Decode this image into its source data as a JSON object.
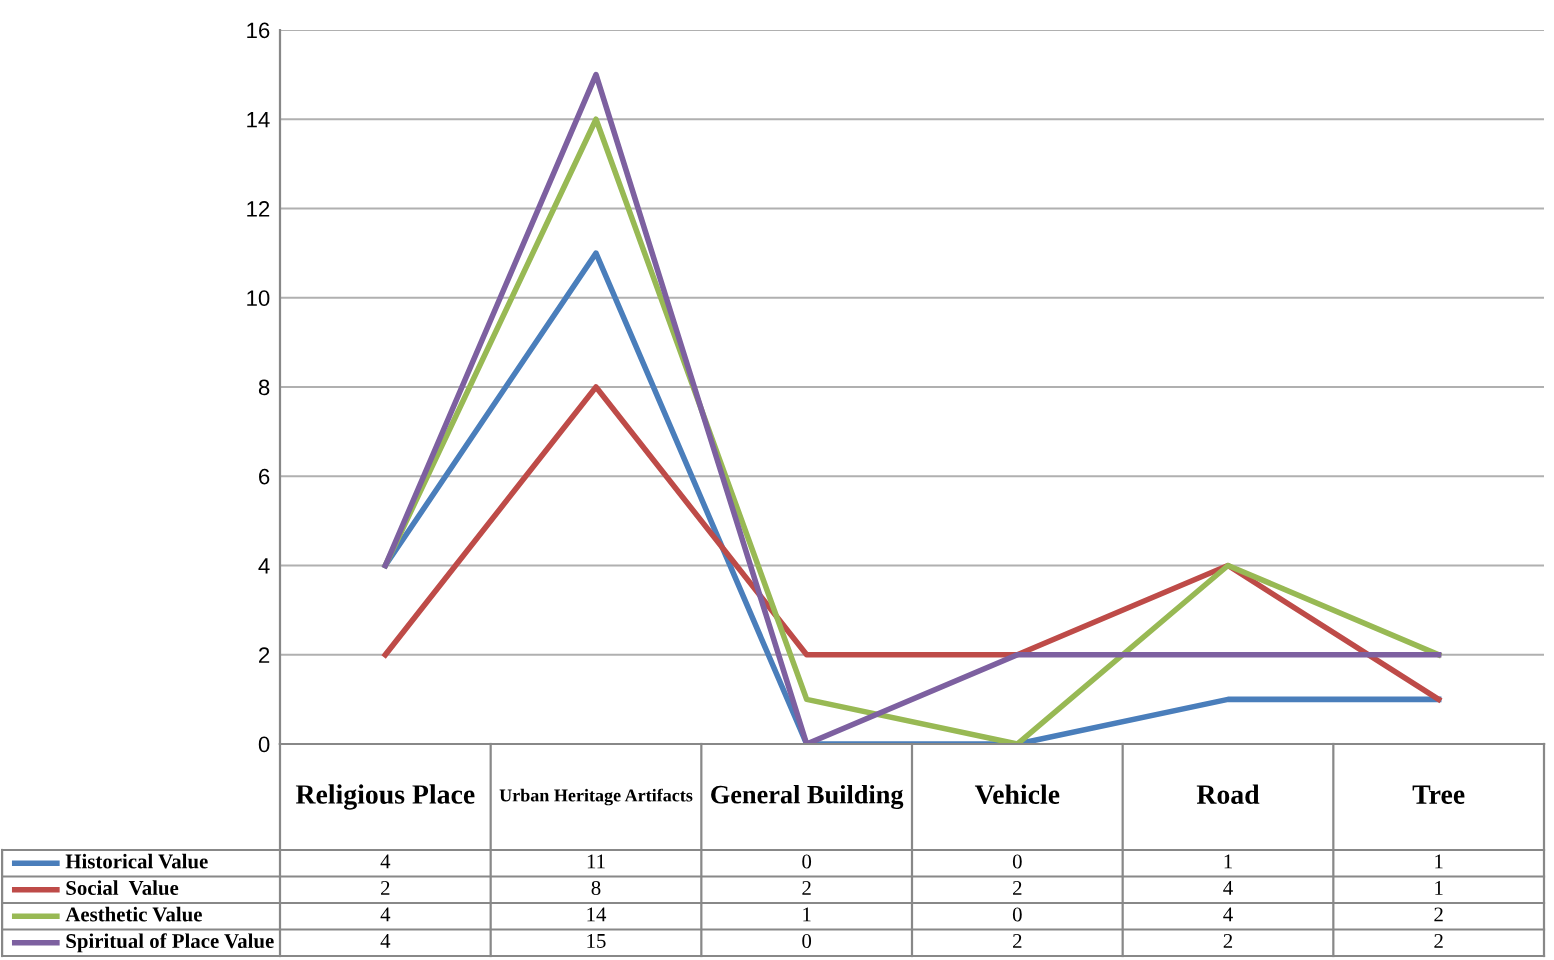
{
  "chart_data": {
    "type": "line",
    "categories": [
      "Religious Place",
      "Urban Heritage Artifacts",
      "General Building",
      "Vehicle",
      "Road",
      "Tree"
    ],
    "series": [
      {
        "name": "Historical Value",
        "color": "#4a7ebb",
        "values": [
          4,
          11,
          0,
          0,
          1,
          1
        ]
      },
      {
        "name": "Social  Value",
        "color": "#be4b48",
        "values": [
          2,
          8,
          2,
          2,
          4,
          1
        ]
      },
      {
        "name": "Aesthetic Value",
        "color": "#98b954",
        "values": [
          4,
          14,
          1,
          0,
          4,
          2
        ]
      },
      {
        "name": "Spiritual of Place Value",
        "color": "#7d60a0",
        "values": [
          4,
          15,
          0,
          2,
          2,
          2
        ]
      }
    ],
    "ylim": [
      0,
      16
    ],
    "yticks": [
      0,
      2,
      4,
      6,
      8,
      10,
      12,
      14,
      16
    ],
    "grid": "y",
    "legend": "bottom",
    "data_labels": true,
    "marker": "none",
    "line_style": "solid"
  }
}
